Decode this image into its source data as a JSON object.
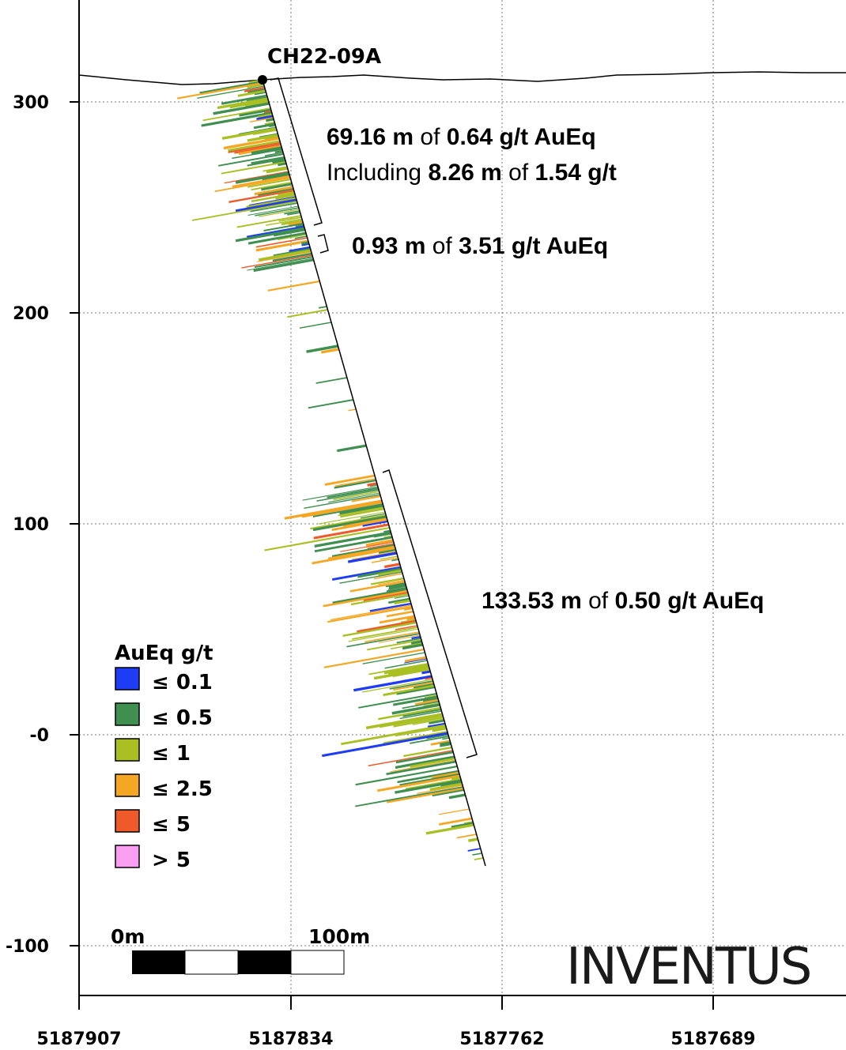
{
  "hole": {
    "name": "CH22-09A"
  },
  "axes": {
    "y_ticks": [
      "300",
      "200",
      "100",
      "-0",
      "-100"
    ],
    "x_ticks": [
      "5187907",
      "5187834",
      "5187762",
      "5187689"
    ]
  },
  "annotations": [
    {
      "parts": [
        "69.16 m",
        " of ",
        "0.64 g/t AuEq"
      ]
    },
    {
      "parts": [
        "Including ",
        "8.26 m",
        " of ",
        "1.54 g/t"
      ]
    },
    {
      "parts": [
        "0.93 m",
        " of ",
        "3.51 g/t AuEq"
      ]
    },
    {
      "parts": [
        "133.53 m",
        " of ",
        "0.50 g/t AuEq"
      ]
    }
  ],
  "legend": {
    "title": "AuEq g/t",
    "items": [
      {
        "label": "≤ 0.1",
        "color": "#1f3cf5"
      },
      {
        "label": "≤ 0.5",
        "color": "#3f8f50"
      },
      {
        "label": "≤ 1",
        "color": "#a9bf22"
      },
      {
        "label": "≤ 2.5",
        "color": "#f5a623"
      },
      {
        "label": "≤ 5",
        "color": "#ee5a2a"
      },
      {
        "label": "> 5",
        "color": "#f99ef0"
      }
    ]
  },
  "scale_bar": {
    "start_label": "0m",
    "end_label": "100m"
  },
  "brand": {
    "name": "INVENTUS"
  }
}
